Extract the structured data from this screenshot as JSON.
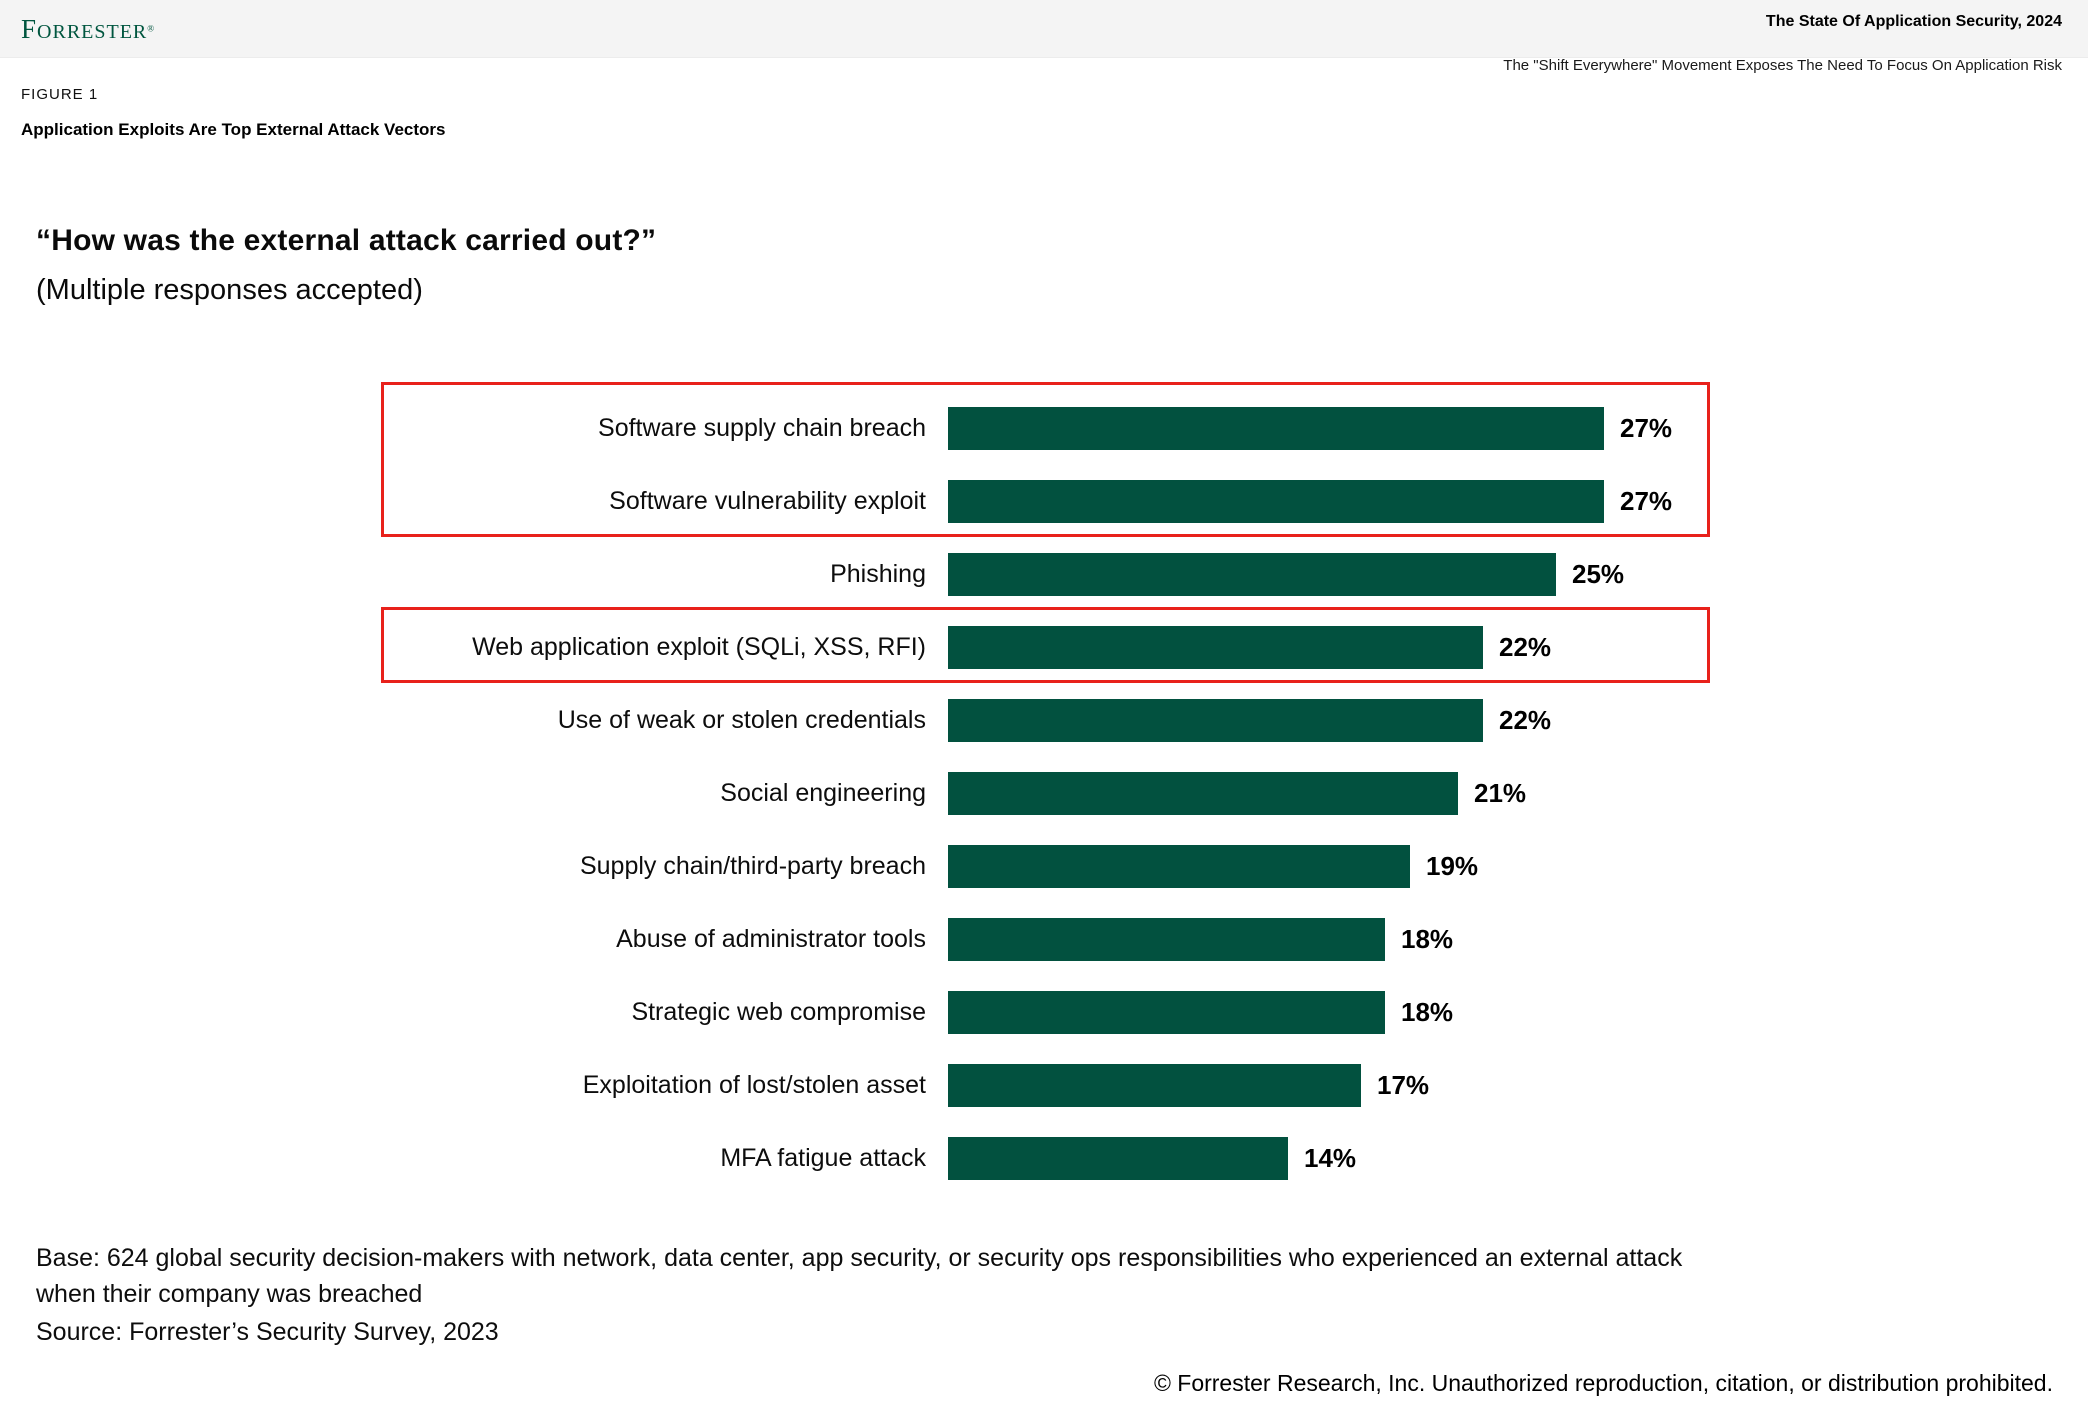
{
  "header": {
    "logo_first_letter": "F",
    "logo_rest": "ORRESTER",
    "logo_registered": "®",
    "report_title": "The State Of Application Security, 2024",
    "report_subtitle": "The \"Shift Everywhere\" Movement Exposes The Need To Focus On Application Risk"
  },
  "figure": {
    "label": "FIGURE 1",
    "caption": "Application Exploits Are Top External Attack Vectors"
  },
  "question": {
    "title": "“How was the external attack carried out?”",
    "note": "(Multiple responses accepted)"
  },
  "chart_data": {
    "type": "bar",
    "orientation": "horizontal",
    "categories": [
      "Software supply chain breach",
      "Software vulnerability exploit",
      "Phishing",
      "Web application exploit (SQLi, XSS, RFI)",
      "Use of weak or stolen credentials",
      "Social engineering",
      "Supply chain/third-party breach",
      "Abuse of administrator tools",
      "Strategic web compromise",
      "Exploitation of lost/stolen asset",
      "MFA fatigue attack"
    ],
    "values": [
      27,
      27,
      25,
      22,
      22,
      21,
      19,
      18,
      18,
      17,
      14
    ],
    "value_suffix": "%",
    "xlim": [
      0,
      30
    ],
    "grid": false,
    "legend": false,
    "bar_color": "#02513F",
    "highlight_color": "#E8211B",
    "highlighted_rows": [
      [
        0,
        1
      ],
      [
        3
      ]
    ]
  },
  "footer": {
    "base_line1": "Base: 624 global security decision-makers with network, data center, app security, or security ops responsibilities who experienced an external attack",
    "base_line2": "when their company was breached",
    "source": "Source: Forrester’s Security Survey, 2023",
    "copyright": "© Forrester Research, Inc. Unauthorized reproduction, citation, or distribution prohibited."
  }
}
